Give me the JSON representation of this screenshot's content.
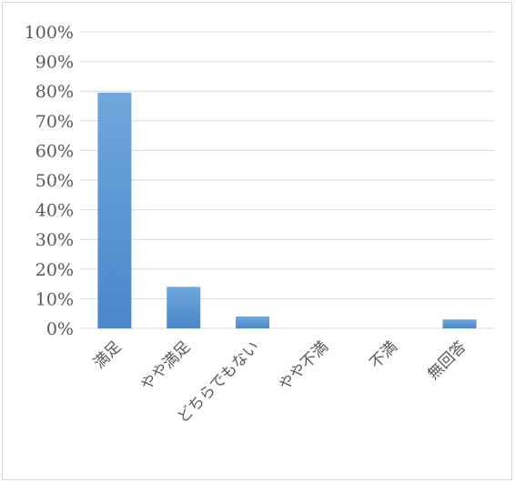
{
  "chart_data": {
    "type": "bar",
    "categories": [
      "満足",
      "やや満足",
      "どちらでもない",
      "やや不満",
      "不満",
      "無回答"
    ],
    "values": [
      79.5,
      14,
      4,
      0,
      0,
      3
    ],
    "y_ticks": [
      "0%",
      "10%",
      "20%",
      "30%",
      "40%",
      "50%",
      "60%",
      "70%",
      "80%",
      "90%",
      "100%"
    ],
    "ylim": [
      0,
      100
    ],
    "grid": true,
    "legend": "none",
    "colors": {
      "bar_top": "#6fa8dc",
      "bar_bottom": "#4a86c9",
      "grid": "#d9d9d9",
      "text": "#595959"
    }
  }
}
